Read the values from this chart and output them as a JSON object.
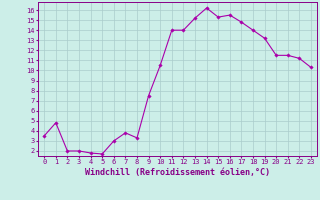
{
  "x": [
    0,
    1,
    2,
    3,
    4,
    5,
    6,
    7,
    8,
    9,
    10,
    11,
    12,
    13,
    14,
    15,
    16,
    17,
    18,
    19,
    20,
    21,
    22,
    23
  ],
  "y": [
    3.5,
    4.8,
    2.0,
    2.0,
    1.8,
    1.7,
    3.0,
    3.8,
    3.3,
    7.5,
    10.5,
    14.0,
    14.0,
    15.2,
    16.2,
    15.3,
    15.5,
    14.8,
    14.0,
    13.2,
    11.5,
    11.5,
    11.2,
    10.3
  ],
  "line_color": "#aa00aa",
  "marker": "D",
  "markersize": 1.8,
  "linewidth": 0.8,
  "xlabel": "Windchill (Refroidissement éolien,°C)",
  "xlabel_fontsize": 6.0,
  "bg_color": "#cceee8",
  "grid_color": "#aacccc",
  "xlim": [
    -0.5,
    23.5
  ],
  "ylim": [
    1.5,
    16.8
  ],
  "yticks": [
    2,
    3,
    4,
    5,
    6,
    7,
    8,
    9,
    10,
    11,
    12,
    13,
    14,
    15,
    16
  ],
  "xticks": [
    0,
    1,
    2,
    3,
    4,
    5,
    6,
    7,
    8,
    9,
    10,
    11,
    12,
    13,
    14,
    15,
    16,
    17,
    18,
    19,
    20,
    21,
    22,
    23
  ],
  "tick_fontsize": 5.0,
  "label_color": "#880088",
  "spine_color": "#880088"
}
